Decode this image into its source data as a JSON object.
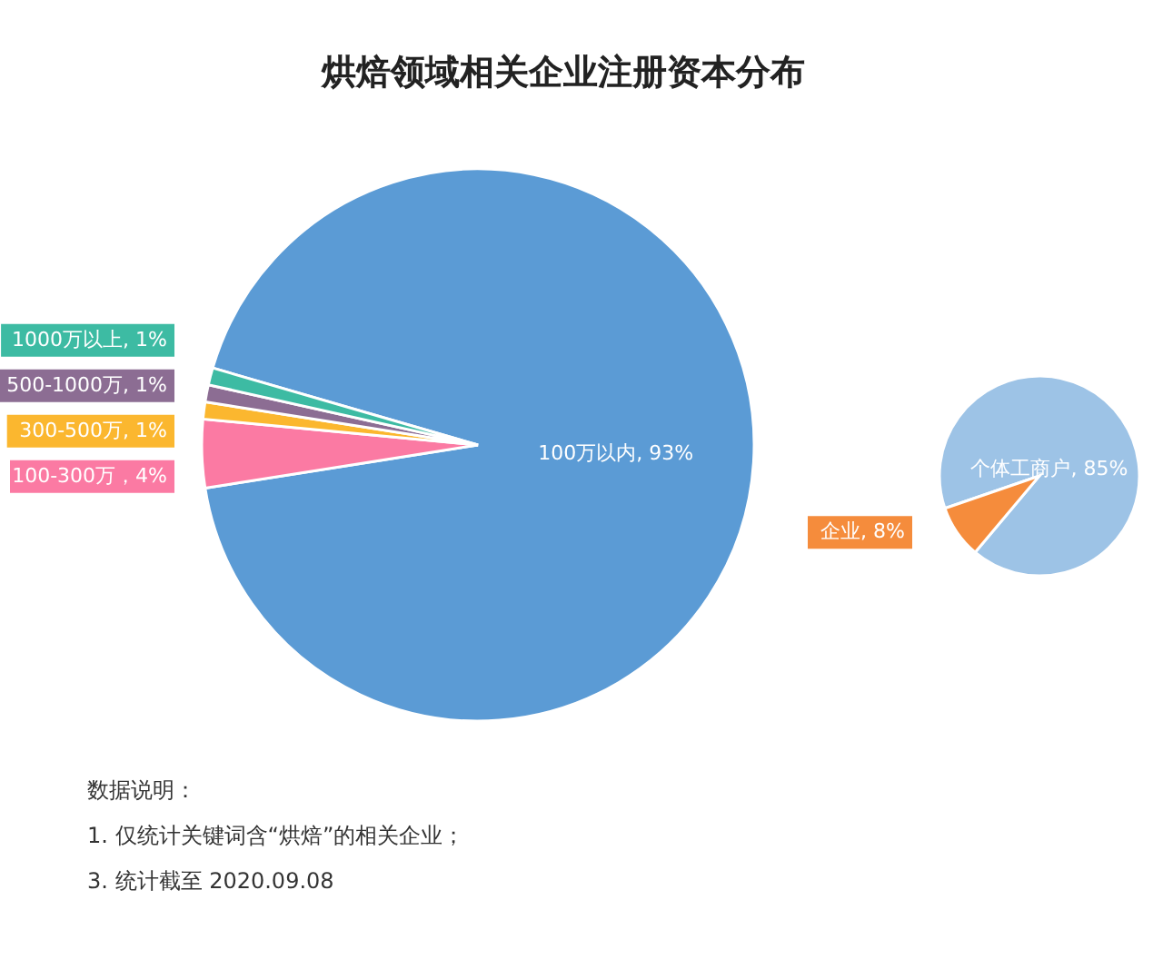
{
  "chart_data": [
    {
      "type": "pie",
      "title": "烘焙领域相关企业注册资本分布",
      "categories": [
        "100万以内",
        "100-300万",
        "300-500万",
        "500-1000万",
        "1000万以上"
      ],
      "values": [
        93,
        4,
        1,
        1,
        1
      ],
      "colors": [
        "#5b9bd5",
        "#fb7aa3",
        "#fbb72f",
        "#8c6d93",
        "#3dbba3"
      ],
      "value_labels": [
        ", 93%",
        "，4%",
        ", 1%",
        ", 1%",
        ", 1%"
      ],
      "annotations": [
        "数据说明：",
        "1. 仅统计关键词含“烘焙”的相关企业；",
        "3. 统计截至 2020.09.08"
      ]
    },
    {
      "type": "pie",
      "categories": [
        "个体工商户",
        "企业"
      ],
      "values": [
        85,
        8
      ],
      "colors": [
        "#9dc3e6",
        "#f58c3c"
      ],
      "value_labels": [
        ", 85%",
        ", 8%"
      ]
    }
  ]
}
